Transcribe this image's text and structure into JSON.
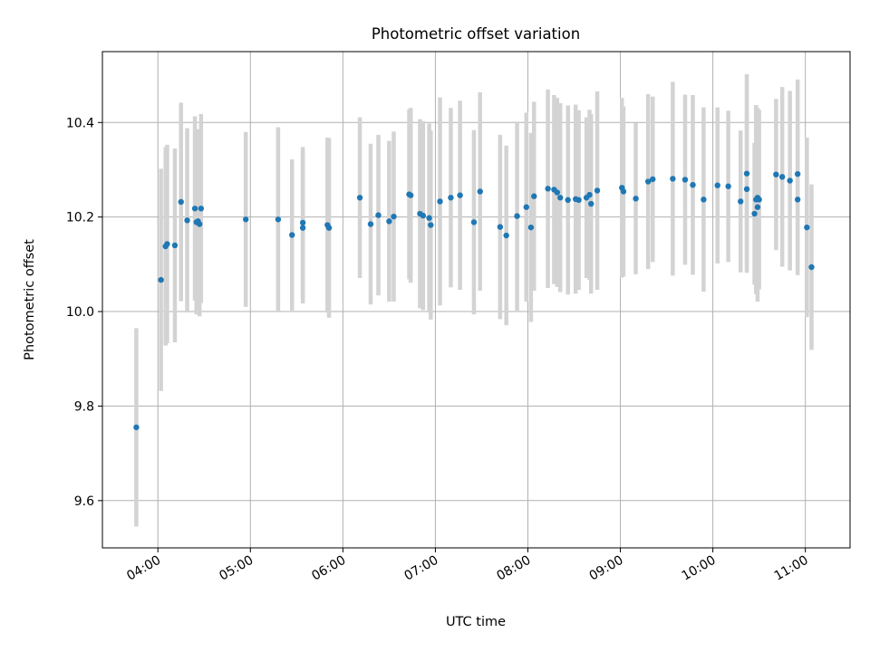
{
  "chart_data": {
    "type": "scatter",
    "title": "Photometric offset variation",
    "xlabel": "UTC time",
    "ylabel": "Photometric offset",
    "x_axis_type": "time",
    "xlim": [
      "03:24",
      "11:29"
    ],
    "ylim": [
      9.5,
      10.55
    ],
    "x_ticks": [
      "04:00",
      "05:00",
      "06:00",
      "07:00",
      "08:00",
      "09:00",
      "10:00",
      "11:00"
    ],
    "y_ticks": [
      9.6,
      9.8,
      10.0,
      10.2,
      10.4
    ],
    "y_tick_labels": [
      "9.6",
      "9.8",
      "10.0",
      "10.2",
      "10.4"
    ],
    "grid": true,
    "legend": "none",
    "marker_color": "#1f77b4",
    "errorbar_color": "#d3d3d3",
    "series": [
      {
        "x": [
          "03:46",
          "04:02",
          "04:05",
          "04:06",
          "04:11",
          "04:15",
          "04:19",
          "04:24",
          "04:25",
          "04:26",
          "04:27",
          "04:28",
          "04:57",
          "05:18",
          "05:27",
          "05:34",
          "05:34",
          "05:50",
          "05:51",
          "06:11",
          "06:18",
          "06:23",
          "06:30",
          "06:33",
          "06:43",
          "06:44",
          "06:50",
          "06:52",
          "06:56",
          "06:57",
          "07:03",
          "07:10",
          "07:16",
          "07:25",
          "07:29",
          "07:42",
          "07:46",
          "07:53",
          "07:59",
          "08:02",
          "08:04",
          "08:13",
          "08:17",
          "08:19",
          "08:21",
          "08:26",
          "08:31",
          "08:33",
          "08:38",
          "08:40",
          "08:41",
          "08:45",
          "09:01",
          "09:02",
          "09:10",
          "09:18",
          "09:21",
          "09:34",
          "09:42",
          "09:47",
          "09:54",
          "10:03",
          "10:10",
          "10:18",
          "10:22",
          "10:22",
          "10:27",
          "10:28",
          "10:29",
          "10:29",
          "10:30",
          "10:41",
          "10:45",
          "10:50",
          "10:55",
          "10:55",
          "11:01",
          "11:04"
        ],
        "y": [
          9.755,
          10.067,
          10.138,
          10.143,
          10.14,
          10.232,
          10.193,
          10.218,
          10.189,
          10.191,
          10.185,
          10.218,
          10.195,
          10.195,
          10.162,
          10.188,
          10.177,
          10.183,
          10.177,
          10.241,
          10.185,
          10.204,
          10.191,
          10.201,
          10.248,
          10.246,
          10.207,
          10.203,
          10.198,
          10.183,
          10.233,
          10.241,
          10.246,
          10.189,
          10.254,
          10.179,
          10.161,
          10.202,
          10.221,
          10.178,
          10.244,
          10.26,
          10.258,
          10.252,
          10.241,
          10.236,
          10.238,
          10.236,
          10.241,
          10.247,
          10.228,
          10.256,
          10.262,
          10.254,
          10.239,
          10.275,
          10.28,
          10.281,
          10.279,
          10.268,
          10.237,
          10.267,
          10.265,
          10.233,
          10.292,
          10.259,
          10.207,
          10.237,
          10.221,
          10.241,
          10.237,
          10.29,
          10.285,
          10.277,
          10.291,
          10.237,
          10.178,
          10.094
        ],
        "yerr": [
          0.21,
          0.235,
          0.21,
          0.21,
          0.205,
          0.21,
          0.195,
          0.195,
          0.195,
          0.195,
          0.195,
          0.2,
          0.185,
          0.195,
          0.16,
          0.16,
          0.16,
          0.185,
          0.19,
          0.17,
          0.17,
          0.17,
          0.17,
          0.18,
          0.18,
          0.185,
          0.2,
          0.2,
          0.2,
          0.2,
          0.22,
          0.19,
          0.2,
          0.195,
          0.21,
          0.195,
          0.19,
          0.2,
          0.2,
          0.2,
          0.2,
          0.21,
          0.2,
          0.2,
          0.2,
          0.2,
          0.2,
          0.19,
          0.17,
          0.18,
          0.19,
          0.21,
          0.19,
          0.18,
          0.16,
          0.185,
          0.175,
          0.205,
          0.18,
          0.19,
          0.195,
          0.165,
          0.16,
          0.15,
          0.21,
          0.16,
          0.15,
          0.2,
          0.2,
          0.19,
          0.19,
          0.16,
          0.19,
          0.19,
          0.2,
          0.16,
          0.19,
          0.175
        ]
      }
    ]
  }
}
